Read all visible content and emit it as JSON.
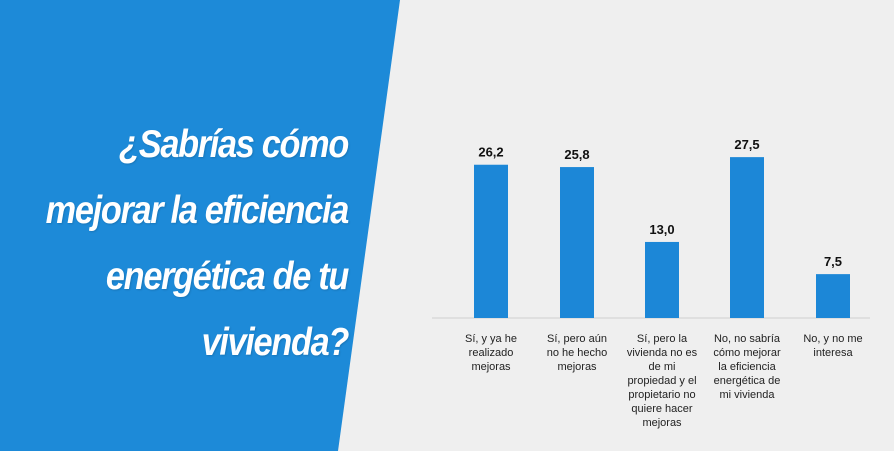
{
  "headline": {
    "lines": [
      "¿Sabrías cómo",
      "mejorar la eficiencia",
      "energética de tu",
      "vivienda?"
    ]
  },
  "colors": {
    "panel": "#1d8ad8",
    "bar": "#1c87d7",
    "background": "#efefef"
  },
  "chart_data": {
    "type": "bar",
    "categories": [
      [
        "Sí, y ya he",
        "realizado",
        "mejoras"
      ],
      [
        "Sí, pero aún",
        "no he hecho",
        "mejoras"
      ],
      [
        "Sí, pero la",
        "vivienda no es",
        "de mi",
        "propiedad y el",
        "propietario no",
        "quiere hacer",
        "mejoras"
      ],
      [
        "No, no sabría",
        "cómo mejorar",
        "la eficiencia",
        "energética de",
        "mi vivienda"
      ],
      [
        "No, y no me",
        "interesa"
      ]
    ],
    "values": [
      26.2,
      25.8,
      13.0,
      27.5,
      7.5
    ],
    "value_labels": [
      "26,2",
      "25,8",
      "13,0",
      "27,5",
      "7,5"
    ],
    "ylim": [
      0,
      30
    ],
    "grid": false
  }
}
